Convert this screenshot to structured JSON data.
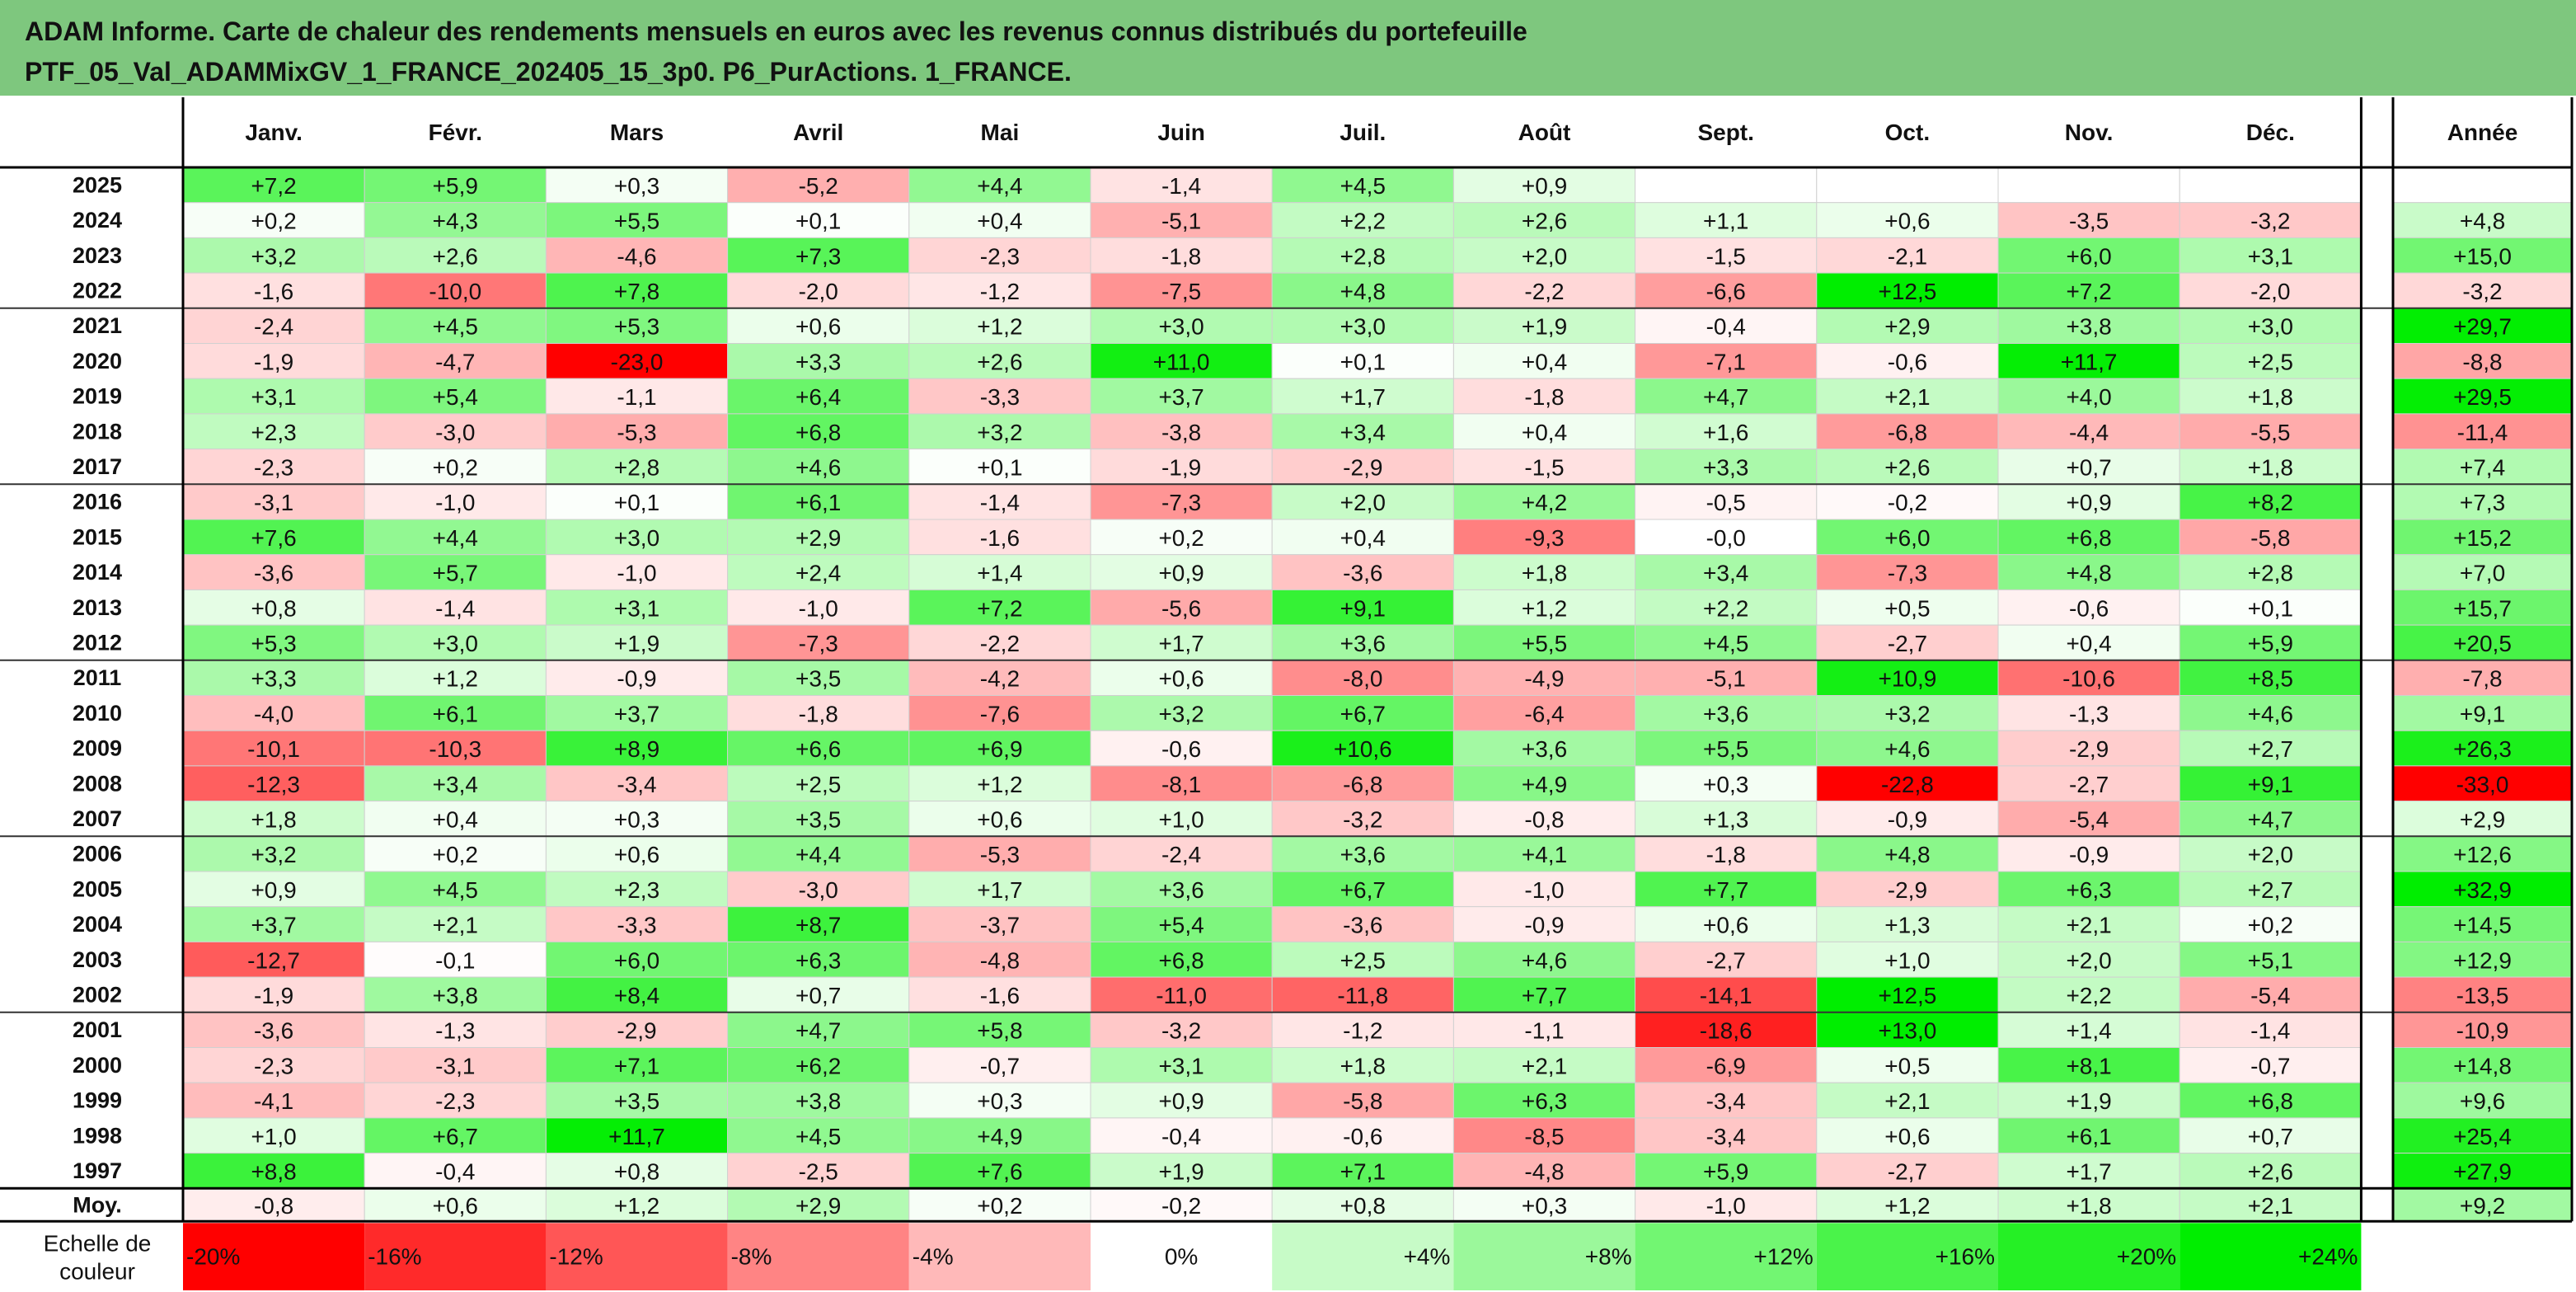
{
  "title": {
    "line1": "ADAM Informe. Carte de chaleur des rendements mensuels en euros avec les revenus connus distribués du portefeuille",
    "line2": "PTF_05_Val_ADAMMixGV_1_FRANCE_202405_15_3p0. P6_PurActions. 1_FRANCE."
  },
  "colors": {
    "header_bg": "#7ec77e",
    "negative_max": "#ff0000",
    "positive_max": "#00ee00",
    "neutral": "#ffffff"
  },
  "chart_data": {
    "type": "heatmap",
    "unit": "%",
    "columns": [
      "Janv.",
      "Févr.",
      "Mars",
      "Avril",
      "Mai",
      "Juin",
      "Juil.",
      "Août",
      "Sept.",
      "Oct.",
      "Nov.",
      "Déc."
    ],
    "annual_label": "Année",
    "rows": [
      {
        "year": "2025",
        "values": [
          7.2,
          5.9,
          0.3,
          -5.2,
          4.4,
          -1.4,
          4.5,
          0.9,
          null,
          null,
          null,
          null
        ],
        "annual": null
      },
      {
        "year": "2024",
        "values": [
          0.2,
          4.3,
          5.5,
          0.1,
          0.4,
          -5.1,
          2.2,
          2.6,
          1.1,
          0.6,
          -3.5,
          -3.2
        ],
        "annual": 4.8
      },
      {
        "year": "2023",
        "values": [
          3.2,
          2.6,
          -4.6,
          7.3,
          -2.3,
          -1.8,
          2.8,
          2.0,
          -1.5,
          -2.1,
          6.0,
          3.1
        ],
        "annual": 15.0
      },
      {
        "year": "2022",
        "values": [
          -1.6,
          -10.0,
          7.8,
          -2.0,
          -1.2,
          -7.5,
          4.8,
          -2.2,
          -6.6,
          12.5,
          7.2,
          -2.0
        ],
        "annual": -3.2
      },
      {
        "year": "2021",
        "values": [
          -2.4,
          4.5,
          5.3,
          0.6,
          1.2,
          3.0,
          3.0,
          1.9,
          -0.4,
          2.9,
          3.8,
          3.0
        ],
        "annual": 29.7
      },
      {
        "year": "2020",
        "values": [
          -1.9,
          -4.7,
          -23.0,
          3.3,
          2.6,
          11.0,
          0.1,
          0.4,
          -7.1,
          -0.6,
          11.7,
          2.5
        ],
        "annual": -8.8
      },
      {
        "year": "2019",
        "values": [
          3.1,
          5.4,
          -1.1,
          6.4,
          -3.3,
          3.7,
          1.7,
          -1.8,
          4.7,
          2.1,
          4.0,
          1.8
        ],
        "annual": 29.5
      },
      {
        "year": "2018",
        "values": [
          2.3,
          -3.0,
          -5.3,
          6.8,
          3.2,
          -3.8,
          3.4,
          0.4,
          1.6,
          -6.8,
          -4.4,
          -5.5
        ],
        "annual": -11.4
      },
      {
        "year": "2017",
        "values": [
          -2.3,
          0.2,
          2.8,
          4.6,
          0.1,
          -1.9,
          -2.9,
          -1.5,
          3.3,
          2.6,
          0.7,
          1.8
        ],
        "annual": 7.4
      },
      {
        "year": "2016",
        "values": [
          -3.1,
          -1.0,
          0.1,
          6.1,
          -1.4,
          -7.3,
          2.0,
          4.2,
          -0.5,
          -0.2,
          0.9,
          8.2
        ],
        "annual": 7.3
      },
      {
        "year": "2015",
        "values": [
          7.6,
          4.4,
          3.0,
          2.9,
          -1.6,
          0.2,
          0.4,
          -9.3,
          -0.0,
          6.0,
          6.8,
          -5.8
        ],
        "annual": 15.2
      },
      {
        "year": "2014",
        "values": [
          -3.6,
          5.7,
          -1.0,
          2.4,
          1.4,
          0.9,
          -3.6,
          1.8,
          3.4,
          -7.3,
          4.8,
          2.8
        ],
        "annual": 7.0
      },
      {
        "year": "2013",
        "values": [
          0.8,
          -1.4,
          3.1,
          -1.0,
          7.2,
          -5.6,
          9.1,
          1.2,
          2.2,
          0.5,
          -0.6,
          0.1
        ],
        "annual": 15.7
      },
      {
        "year": "2012",
        "values": [
          5.3,
          3.0,
          1.9,
          -7.3,
          -2.2,
          1.7,
          3.6,
          5.5,
          4.5,
          -2.7,
          0.4,
          5.9
        ],
        "annual": 20.5
      },
      {
        "year": "2011",
        "values": [
          3.3,
          1.2,
          -0.9,
          3.5,
          -4.2,
          0.6,
          -8.0,
          -4.9,
          -5.1,
          10.9,
          -10.6,
          8.5
        ],
        "annual": -7.8
      },
      {
        "year": "2010",
        "values": [
          -4.0,
          6.1,
          3.7,
          -1.8,
          -7.6,
          3.2,
          6.7,
          -6.4,
          3.6,
          3.2,
          -1.3,
          4.6
        ],
        "annual": 9.1
      },
      {
        "year": "2009",
        "values": [
          -10.1,
          -10.3,
          8.9,
          6.6,
          6.9,
          -0.6,
          10.6,
          3.6,
          5.5,
          4.6,
          -2.9,
          2.7
        ],
        "annual": 26.3
      },
      {
        "year": "2008",
        "values": [
          -12.3,
          3.4,
          -3.4,
          2.5,
          1.2,
          -8.1,
          -6.8,
          4.9,
          0.3,
          -22.8,
          -2.7,
          9.1
        ],
        "annual": -33.0
      },
      {
        "year": "2007",
        "values": [
          1.8,
          0.4,
          0.3,
          3.5,
          0.6,
          1.0,
          -3.2,
          -0.8,
          1.3,
          -0.9,
          -5.4,
          4.7
        ],
        "annual": 2.9
      },
      {
        "year": "2006",
        "values": [
          3.2,
          0.2,
          0.6,
          4.4,
          -5.3,
          -2.4,
          3.6,
          4.1,
          -1.8,
          4.8,
          -0.9,
          2.0
        ],
        "annual": 12.6
      },
      {
        "year": "2005",
        "values": [
          0.9,
          4.5,
          2.3,
          -3.0,
          1.7,
          3.6,
          6.7,
          -1.0,
          7.7,
          -2.9,
          6.3,
          2.7
        ],
        "annual": 32.9
      },
      {
        "year": "2004",
        "values": [
          3.7,
          2.1,
          -3.3,
          8.7,
          -3.7,
          5.4,
          -3.6,
          -0.9,
          0.6,
          1.3,
          2.1,
          0.2
        ],
        "annual": 14.5
      },
      {
        "year": "2003",
        "values": [
          -12.7,
          -0.1,
          6.0,
          6.3,
          -4.8,
          6.8,
          2.5,
          4.6,
          -2.7,
          1.0,
          2.0,
          5.1
        ],
        "annual": 12.9
      },
      {
        "year": "2002",
        "values": [
          -1.9,
          3.8,
          8.4,
          0.7,
          -1.6,
          -11.0,
          -11.8,
          7.7,
          -14.1,
          12.5,
          2.2,
          -5.4
        ],
        "annual": -13.5
      },
      {
        "year": "2001",
        "values": [
          -3.6,
          -1.3,
          -2.9,
          4.7,
          5.8,
          -3.2,
          -1.2,
          -1.1,
          -18.6,
          13.0,
          1.4,
          -1.4
        ],
        "annual": -10.9
      },
      {
        "year": "2000",
        "values": [
          -2.3,
          -3.1,
          7.1,
          6.2,
          -0.7,
          3.1,
          1.8,
          2.1,
          -6.9,
          0.5,
          8.1,
          -0.7
        ],
        "annual": 14.8
      },
      {
        "year": "1999",
        "values": [
          -4.1,
          -2.3,
          3.5,
          3.8,
          0.3,
          0.9,
          -5.8,
          6.3,
          -3.4,
          2.1,
          1.9,
          6.8
        ],
        "annual": 9.6
      },
      {
        "year": "1998",
        "values": [
          1.0,
          6.7,
          11.7,
          4.5,
          4.9,
          -0.4,
          -0.6,
          -8.5,
          -3.4,
          0.6,
          6.1,
          0.7
        ],
        "annual": 25.4
      },
      {
        "year": "1997",
        "values": [
          8.8,
          -0.4,
          0.8,
          -2.5,
          7.6,
          1.9,
          7.1,
          -4.8,
          5.9,
          -2.7,
          1.7,
          2.6
        ],
        "annual": 27.9
      }
    ],
    "average": {
      "label": "Moy.",
      "values": [
        -0.8,
        0.6,
        1.2,
        2.9,
        0.2,
        -0.2,
        0.8,
        0.3,
        -1.0,
        1.2,
        1.8,
        2.1
      ],
      "annual": 9.2
    },
    "scale": {
      "label_line1": "Echelle de",
      "label_line2": "couleur",
      "steps": [
        "-20%",
        "-16%",
        "-12%",
        "-8%",
        "-4%",
        "0%",
        "+4%",
        "+8%",
        "+12%",
        "+16%",
        "+20%",
        "+24%"
      ]
    }
  }
}
